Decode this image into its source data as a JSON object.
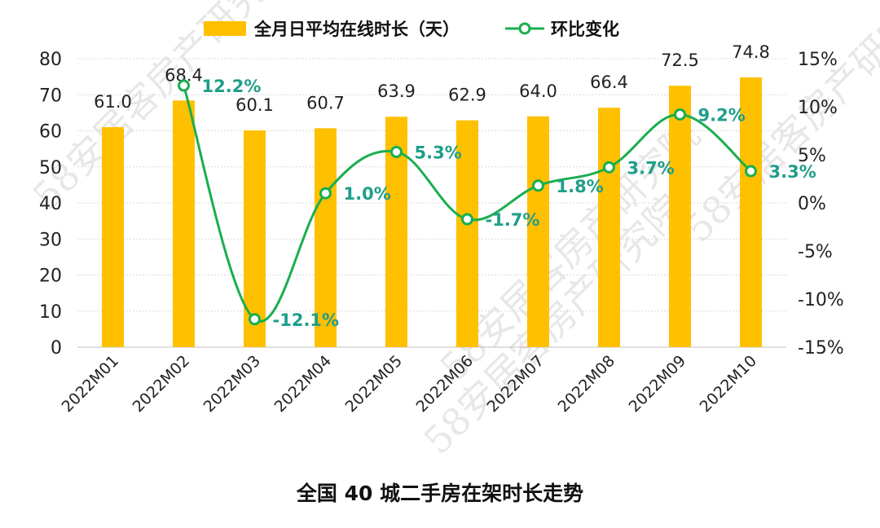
{
  "chart_data": {
    "type": "bar+line",
    "title": "全国 40 城二手房在架时长走势",
    "categories": [
      "2022M01",
      "2022M02",
      "2022M03",
      "2022M04",
      "2022M05",
      "2022M06",
      "2022M07",
      "2022M08",
      "2022M09",
      "2022M10"
    ],
    "series": [
      {
        "name": "全月日平均在线时长（天）",
        "type": "bar",
        "axis": "left",
        "values": [
          61.0,
          68.4,
          60.1,
          60.7,
          63.9,
          62.9,
          64.0,
          66.4,
          72.5,
          74.8
        ],
        "labels": [
          "61.0",
          "68.4",
          "60.1",
          "60.7",
          "63.9",
          "62.9",
          "64.0",
          "66.4",
          "72.5",
          "74.8"
        ]
      },
      {
        "name": "环比变化",
        "type": "line",
        "axis": "right",
        "values": [
          null,
          12.2,
          -12.1,
          1.0,
          5.3,
          -1.7,
          1.8,
          3.7,
          9.2,
          3.3
        ],
        "labels": [
          "",
          "12.2%",
          "-12.1%",
          "1.0%",
          "5.3%",
          "-1.7%",
          "1.8%",
          "3.7%",
          "9.2%",
          "3.3%"
        ]
      }
    ],
    "left_axis": {
      "ylim": [
        0,
        80
      ],
      "ticks": [
        "0",
        "10",
        "20",
        "30",
        "40",
        "50",
        "60",
        "70",
        "80"
      ]
    },
    "right_axis": {
      "ylim": [
        -15,
        15
      ],
      "ticks": [
        "-15%",
        "-10%",
        "-5%",
        "0%",
        "5%",
        "10%",
        "15%"
      ]
    },
    "legend": {
      "position": "top",
      "bar_label": "全月日平均在线时长（天）",
      "line_label": "环比变化"
    },
    "grid": true,
    "colors": {
      "bar": "#FFC000",
      "line": "#1AAE4F",
      "line_label": "#1F9E8A",
      "grid": "#d9d9d9"
    }
  },
  "watermark": {
    "text": "58安居客房产研究院"
  }
}
